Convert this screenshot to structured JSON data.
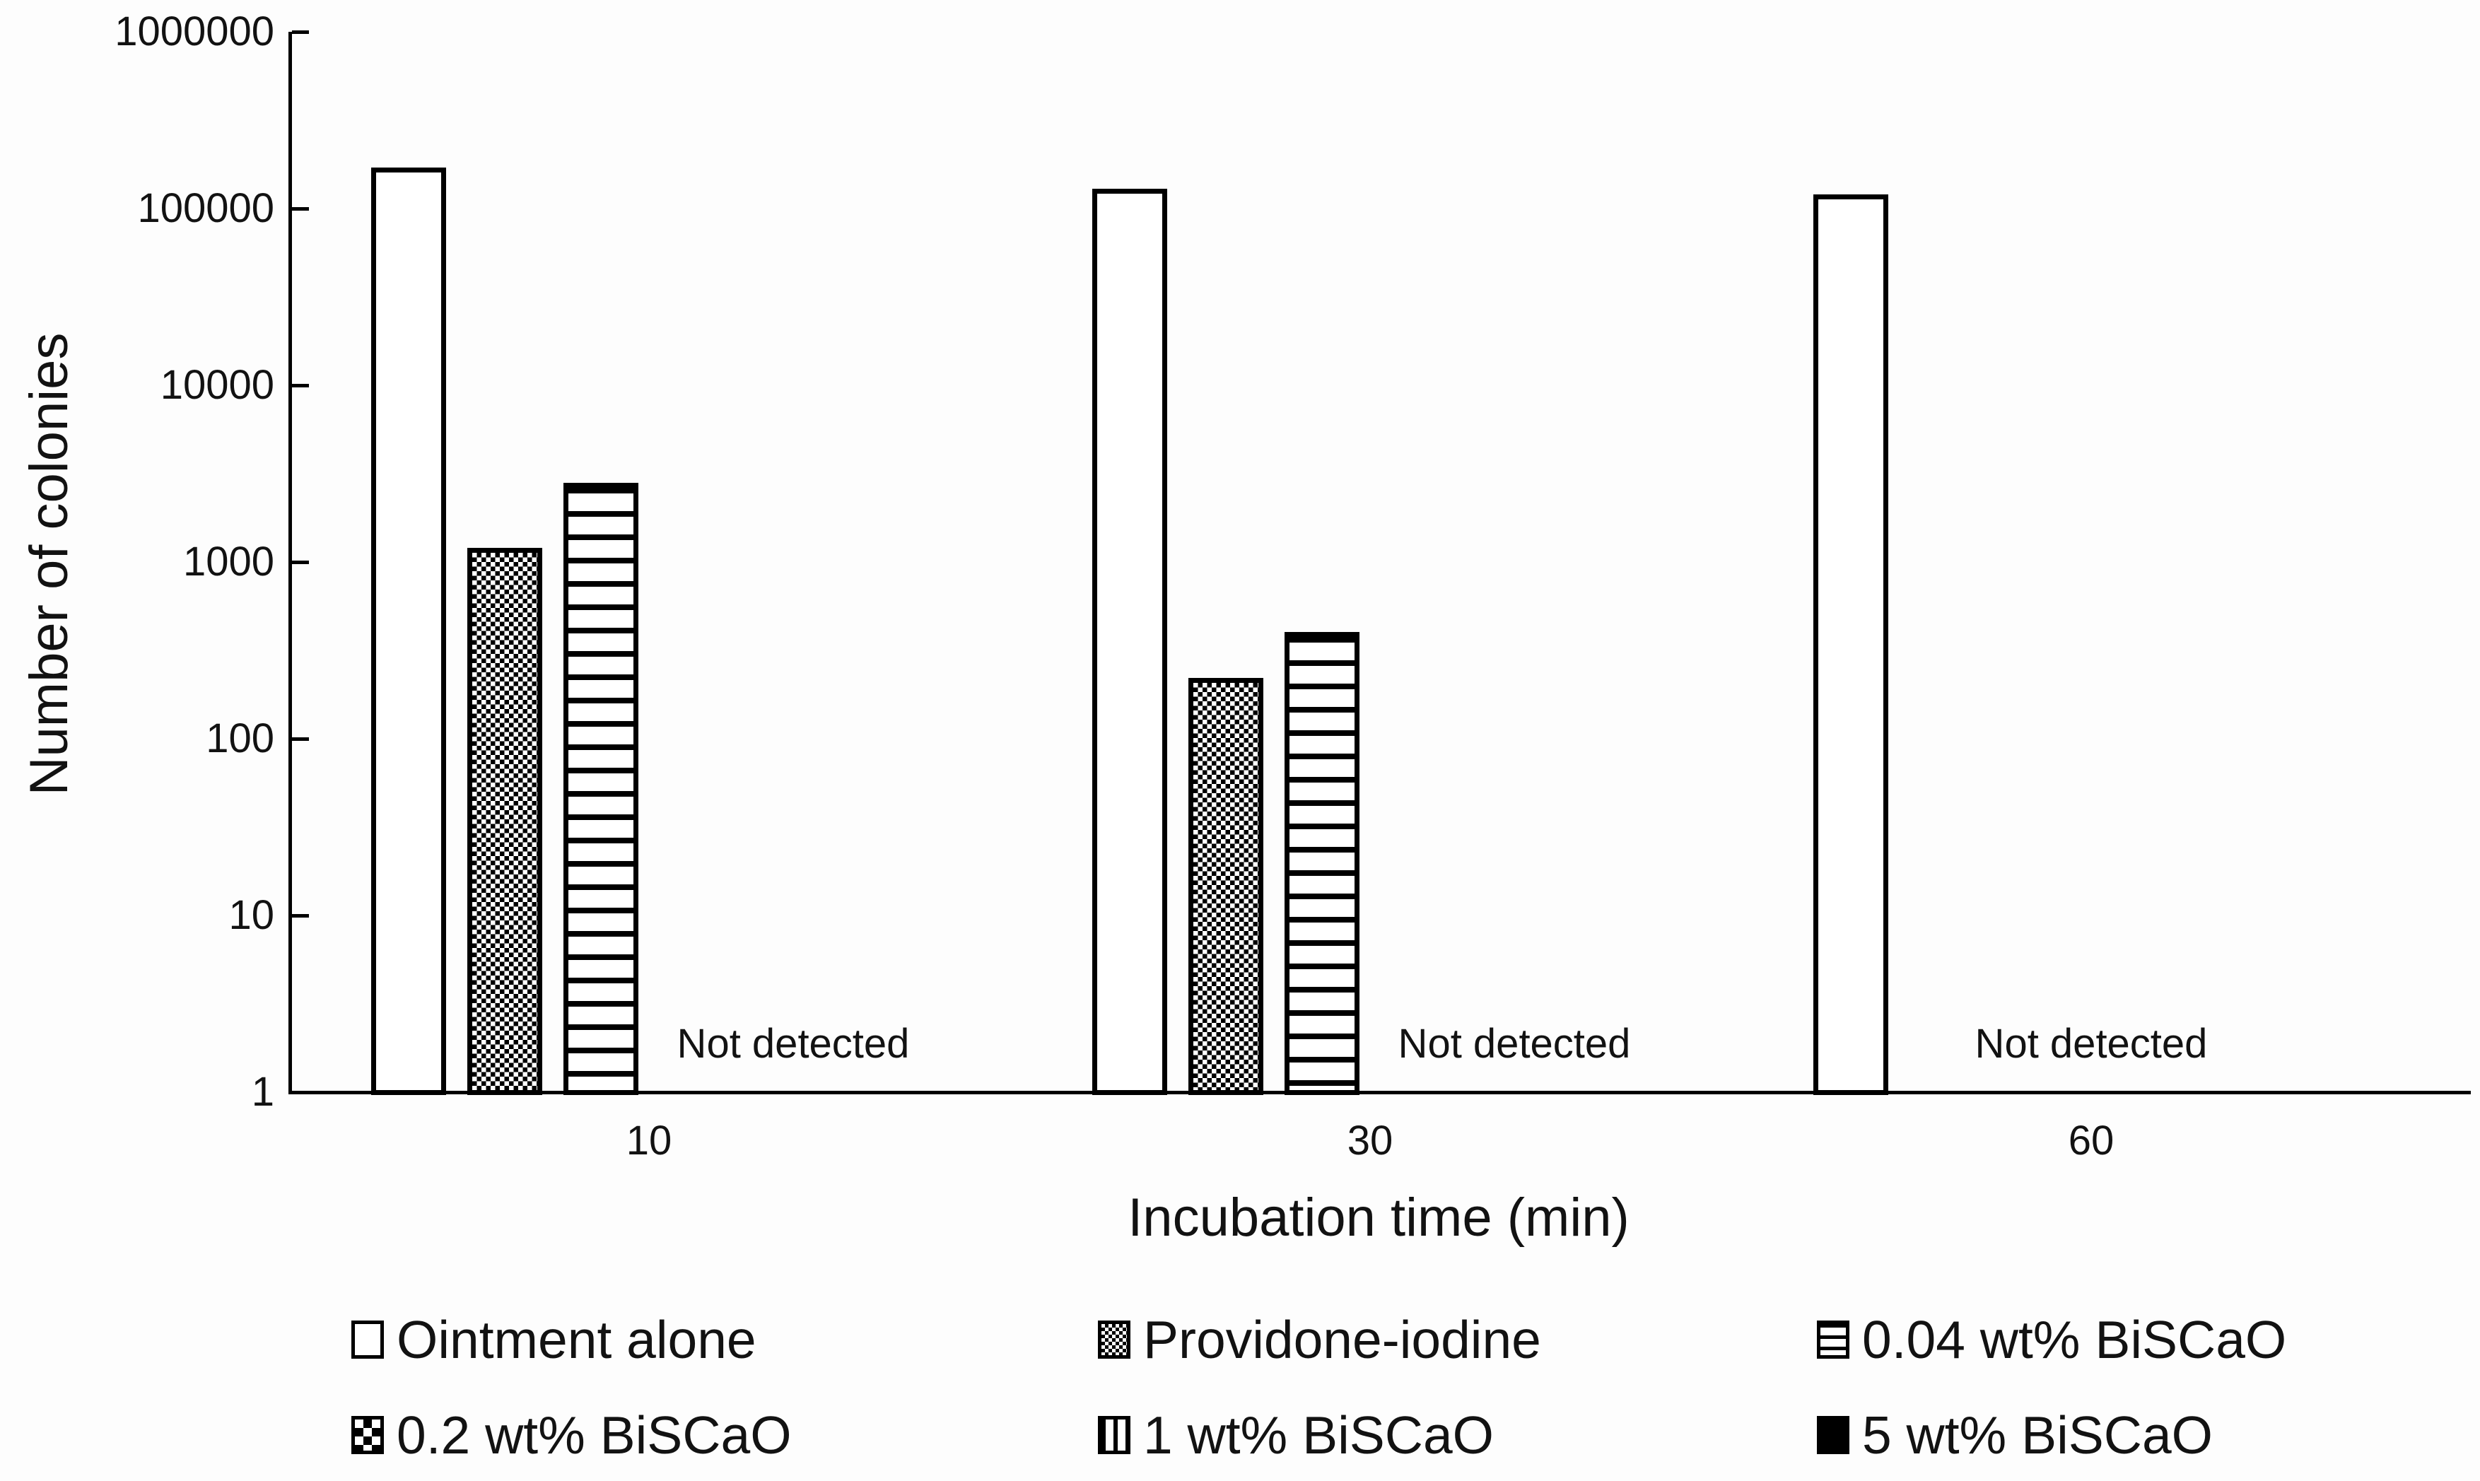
{
  "chart_data": {
    "type": "bar",
    "title": "",
    "xlabel": "Incubation time (min)",
    "ylabel": "Number of colonies",
    "y_scale": "log",
    "ylim": [
      1,
      1000000
    ],
    "y_ticks": [
      1,
      10,
      100,
      1000,
      10000,
      100000,
      1000000
    ],
    "y_tick_labels": [
      "1",
      "10",
      "100",
      "1000",
      "10000",
      "100000",
      "1000000"
    ],
    "categories": [
      "10",
      "30",
      "60"
    ],
    "grid": "off",
    "legend_position": "bottom",
    "series": [
      {
        "name": "Ointment alone",
        "pattern": "plain",
        "values": [
          170000,
          130000,
          120000
        ]
      },
      {
        "name": "Providone-iodine",
        "pattern": "dots",
        "values": [
          1200,
          220,
          null
        ]
      },
      {
        "name": "0.04 wt% BiSCaO",
        "pattern": "hlines",
        "values": [
          2800,
          400,
          null
        ]
      },
      {
        "name": "0.2 wt% BiSCaO",
        "pattern": "checker",
        "values": [
          null,
          null,
          null
        ]
      },
      {
        "name": "1 wt% BiSCaO",
        "pattern": "vlines",
        "values": [
          null,
          null,
          null
        ]
      },
      {
        "name": "5 wt% BiSCaO",
        "pattern": "solid",
        "values": [
          null,
          null,
          null
        ]
      }
    ],
    "annotations": [
      {
        "text": "Not detected",
        "category_index": 0
      },
      {
        "text": "Not detected",
        "category_index": 1
      },
      {
        "text": "Not detected",
        "category_index": 2
      }
    ]
  }
}
